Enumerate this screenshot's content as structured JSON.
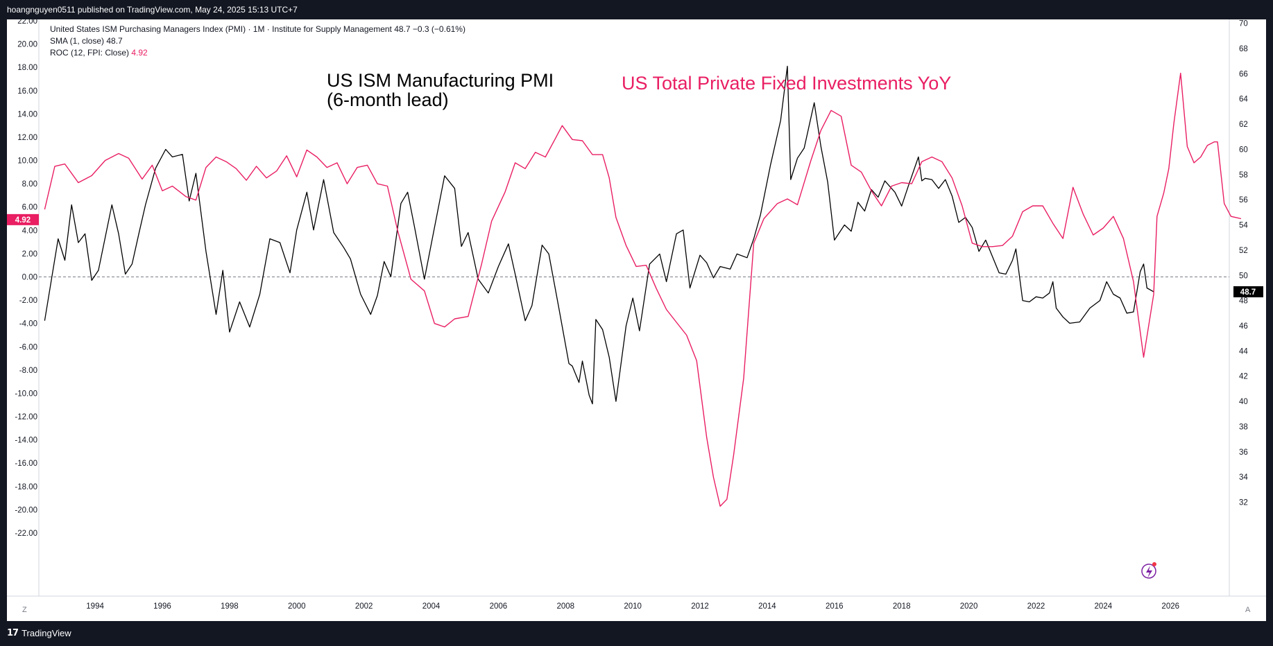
{
  "header": {
    "published": "hoangnguyen0511 published on TradingView.com, May 24, 2025 15:13 UTC+7"
  },
  "footer": {
    "brand": "TradingView",
    "brand_icon": "tradingview-logo-icon"
  },
  "legend": {
    "main": "United States ISM Purchasing Managers Index (PMI) · 1M · Institute for Supply Management  48.7  −0.3 (−0.61%)",
    "sma": "SMA (1, close)",
    "sma_value": "48.7",
    "roc": "ROC (12, FPI: Close)",
    "roc_value": "4.92"
  },
  "annotations": {
    "pmi_line1": "US ISM Manufacturing PMI",
    "pmi_line2": "(6-month lead)",
    "investment": "US Total Private Fixed Investments YoY"
  },
  "corners": {
    "left": "Z",
    "right": "A"
  },
  "colors": {
    "pmi": "#000000",
    "roc": "#e91e63",
    "background": "#ffffff",
    "frame": "#131722"
  },
  "chart_data": {
    "type": "line",
    "x_ticks": [
      "1994",
      "1996",
      "1998",
      "2000",
      "2002",
      "2004",
      "2006",
      "2008",
      "2010",
      "2012",
      "2014",
      "2016",
      "2018",
      "2020",
      "2022",
      "2024",
      "2026"
    ],
    "x_range": [
      1992.45,
      2027.75
    ],
    "left_axis": {
      "ticks": [
        "22.00",
        "20.00",
        "18.00",
        "16.00",
        "14.00",
        "12.00",
        "10.00",
        "8.00",
        "6.00",
        "4.00",
        "2.00",
        "0.00",
        "-2.00",
        "-4.00",
        "-6.00",
        "-8.00",
        "-10.00",
        "-12.00",
        "-14.00",
        "-16.00",
        "-18.00",
        "-20.00",
        "-22.00"
      ],
      "range": [
        -22,
        22
      ],
      "current_label": "4.92"
    },
    "right_axis": {
      "ticks": [
        "70",
        "68",
        "66",
        "64",
        "62",
        "60",
        "58",
        "56",
        "54",
        "52",
        "50",
        "48",
        "46",
        "44",
        "42",
        "40",
        "38",
        "36",
        "34",
        "32"
      ],
      "range": [
        31.7,
        70.2
      ],
      "current_label": "48.7"
    },
    "zero_line": 0,
    "series": [
      {
        "name": "United States ISM Purchasing Managers Index (PMI)",
        "axis": "right",
        "color": "#000000",
        "points": [
          [
            1992.5,
            46.4
          ],
          [
            1992.9,
            52.9
          ],
          [
            1993.1,
            51.2
          ],
          [
            1993.3,
            55.6
          ],
          [
            1993.5,
            52.6
          ],
          [
            1993.7,
            53.3
          ],
          [
            1993.9,
            49.6
          ],
          [
            1994.1,
            50.4
          ],
          [
            1994.3,
            53.0
          ],
          [
            1994.5,
            55.6
          ],
          [
            1994.7,
            53.3
          ],
          [
            1994.9,
            50.1
          ],
          [
            1995.1,
            50.9
          ],
          [
            1995.3,
            53.3
          ],
          [
            1995.5,
            55.6
          ],
          [
            1995.8,
            58.5
          ],
          [
            1996.1,
            60.0
          ],
          [
            1996.3,
            59.4
          ],
          [
            1996.6,
            59.6
          ],
          [
            1996.8,
            55.9
          ],
          [
            1997.0,
            58.1
          ],
          [
            1997.3,
            51.9
          ],
          [
            1997.6,
            46.9
          ],
          [
            1997.8,
            50.4
          ],
          [
            1998.0,
            45.5
          ],
          [
            1998.3,
            47.9
          ],
          [
            1998.6,
            45.9
          ],
          [
            1998.9,
            48.5
          ],
          [
            1999.2,
            52.9
          ],
          [
            1999.5,
            52.6
          ],
          [
            1999.8,
            50.2
          ],
          [
            2000.0,
            53.6
          ],
          [
            2000.3,
            56.6
          ],
          [
            2000.5,
            53.6
          ],
          [
            2000.8,
            57.6
          ],
          [
            2001.1,
            53.4
          ],
          [
            2001.4,
            52.2
          ],
          [
            2001.6,
            51.3
          ],
          [
            2001.9,
            48.5
          ],
          [
            2002.2,
            46.9
          ],
          [
            2002.4,
            48.4
          ],
          [
            2002.6,
            51.1
          ],
          [
            2002.8,
            49.9
          ],
          [
            2003.1,
            55.7
          ],
          [
            2003.3,
            56.6
          ],
          [
            2003.5,
            53.9
          ],
          [
            2003.8,
            49.7
          ],
          [
            2004.1,
            53.8
          ],
          [
            2004.4,
            57.9
          ],
          [
            2004.7,
            56.9
          ],
          [
            2004.9,
            52.3
          ],
          [
            2005.1,
            53.4
          ],
          [
            2005.4,
            49.7
          ],
          [
            2005.7,
            48.6
          ],
          [
            2006.0,
            50.7
          ],
          [
            2006.3,
            52.5
          ],
          [
            2006.5,
            50.1
          ],
          [
            2006.8,
            46.4
          ],
          [
            2007.0,
            47.6
          ],
          [
            2007.3,
            52.4
          ],
          [
            2007.5,
            51.7
          ],
          [
            2007.8,
            47.4
          ],
          [
            2008.1,
            43.0
          ],
          [
            2008.2,
            42.8
          ],
          [
            2008.4,
            41.5
          ],
          [
            2008.5,
            43.2
          ],
          [
            2008.7,
            40.5
          ],
          [
            2008.8,
            39.8
          ],
          [
            2008.9,
            46.5
          ],
          [
            2009.1,
            45.7
          ],
          [
            2009.3,
            43.5
          ],
          [
            2009.5,
            40.0
          ],
          [
            2009.8,
            46.0
          ],
          [
            2010.0,
            48.2
          ],
          [
            2010.2,
            45.6
          ],
          [
            2010.5,
            50.9
          ],
          [
            2010.8,
            51.7
          ],
          [
            2011.0,
            49.5
          ],
          [
            2011.3,
            53.3
          ],
          [
            2011.5,
            53.6
          ],
          [
            2011.7,
            49.0
          ],
          [
            2012.0,
            51.6
          ],
          [
            2012.2,
            51.0
          ],
          [
            2012.4,
            49.8
          ],
          [
            2012.6,
            50.7
          ],
          [
            2012.9,
            50.5
          ],
          [
            2013.1,
            51.7
          ],
          [
            2013.4,
            51.4
          ],
          [
            2013.6,
            52.9
          ],
          [
            2013.8,
            54.8
          ],
          [
            2014.1,
            58.8
          ],
          [
            2014.4,
            62.3
          ],
          [
            2014.6,
            66.6
          ],
          [
            2014.7,
            57.6
          ],
          [
            2014.9,
            59.3
          ],
          [
            2015.1,
            60.1
          ],
          [
            2015.4,
            63.7
          ],
          [
            2015.6,
            60.2
          ],
          [
            2015.8,
            57.4
          ],
          [
            2016.0,
            52.8
          ],
          [
            2016.3,
            54.0
          ],
          [
            2016.5,
            53.5
          ],
          [
            2016.7,
            55.8
          ],
          [
            2016.9,
            55.1
          ],
          [
            2017.1,
            56.8
          ],
          [
            2017.3,
            56.2
          ],
          [
            2017.5,
            57.5
          ],
          [
            2017.8,
            56.6
          ],
          [
            2018.0,
            55.5
          ],
          [
            2018.2,
            57.1
          ],
          [
            2018.5,
            59.4
          ],
          [
            2018.6,
            57.5
          ],
          [
            2018.7,
            57.7
          ],
          [
            2018.9,
            57.6
          ],
          [
            2019.1,
            56.9
          ],
          [
            2019.3,
            57.6
          ],
          [
            2019.5,
            56.3
          ],
          [
            2019.7,
            54.2
          ],
          [
            2019.9,
            54.6
          ],
          [
            2020.1,
            53.8
          ],
          [
            2020.3,
            51.9
          ],
          [
            2020.5,
            52.8
          ],
          [
            2020.7,
            51.5
          ],
          [
            2020.9,
            50.2
          ],
          [
            2021.1,
            50.1
          ],
          [
            2021.3,
            51.2
          ],
          [
            2021.4,
            52.1
          ],
          [
            2021.6,
            48.0
          ],
          [
            2021.8,
            47.9
          ],
          [
            2022.0,
            48.3
          ],
          [
            2022.2,
            48.2
          ],
          [
            2022.4,
            48.6
          ],
          [
            2022.5,
            49.5
          ],
          [
            2022.6,
            47.4
          ],
          [
            2022.8,
            46.7
          ],
          [
            2023.0,
            46.2
          ],
          [
            2023.3,
            46.3
          ],
          [
            2023.6,
            47.4
          ],
          [
            2023.9,
            48.0
          ],
          [
            2024.1,
            49.5
          ],
          [
            2024.3,
            48.5
          ],
          [
            2024.5,
            48.2
          ],
          [
            2024.7,
            47.0
          ],
          [
            2024.9,
            47.1
          ],
          [
            2025.1,
            50.3
          ],
          [
            2025.2,
            50.9
          ],
          [
            2025.3,
            49.0
          ],
          [
            2025.5,
            48.7
          ]
        ]
      },
      {
        "name": "ROC (12, FPI: Close)",
        "axis": "left",
        "color": "#e91e63",
        "points": [
          [
            1992.5,
            5.8
          ],
          [
            1992.8,
            9.5
          ],
          [
            1993.1,
            9.7
          ],
          [
            1993.5,
            8.1
          ],
          [
            1993.9,
            8.7
          ],
          [
            1994.3,
            10.0
          ],
          [
            1994.7,
            10.6
          ],
          [
            1995.0,
            10.2
          ],
          [
            1995.4,
            8.4
          ],
          [
            1995.7,
            9.6
          ],
          [
            1996.0,
            7.4
          ],
          [
            1996.3,
            7.8
          ],
          [
            1996.7,
            6.9
          ],
          [
            1997.0,
            6.6
          ],
          [
            1997.3,
            9.4
          ],
          [
            1997.6,
            10.3
          ],
          [
            1997.9,
            9.9
          ],
          [
            1998.2,
            9.3
          ],
          [
            1998.5,
            8.3
          ],
          [
            1998.8,
            9.5
          ],
          [
            1999.1,
            8.5
          ],
          [
            1999.4,
            9.1
          ],
          [
            1999.7,
            10.4
          ],
          [
            2000.0,
            8.6
          ],
          [
            2000.3,
            10.9
          ],
          [
            2000.6,
            10.3
          ],
          [
            2000.9,
            9.4
          ],
          [
            2001.2,
            9.8
          ],
          [
            2001.5,
            8.0
          ],
          [
            2001.8,
            9.4
          ],
          [
            2002.1,
            9.6
          ],
          [
            2002.4,
            8.0
          ],
          [
            2002.7,
            7.8
          ],
          [
            2003.0,
            4.0
          ],
          [
            2003.4,
            -0.2
          ],
          [
            2003.8,
            -1.2
          ],
          [
            2004.1,
            -4.0
          ],
          [
            2004.4,
            -4.3
          ],
          [
            2004.7,
            -3.6
          ],
          [
            2005.1,
            -3.4
          ],
          [
            2005.5,
            1.1
          ],
          [
            2005.8,
            4.8
          ],
          [
            2006.2,
            7.3
          ],
          [
            2006.5,
            9.8
          ],
          [
            2006.8,
            9.3
          ],
          [
            2007.1,
            10.7
          ],
          [
            2007.4,
            10.3
          ],
          [
            2007.7,
            11.9
          ],
          [
            2007.9,
            13.0
          ],
          [
            2008.2,
            11.8
          ],
          [
            2008.5,
            11.7
          ],
          [
            2008.8,
            10.5
          ],
          [
            2009.1,
            10.5
          ],
          [
            2009.3,
            8.5
          ],
          [
            2009.5,
            5.1
          ],
          [
            2009.8,
            2.7
          ],
          [
            2010.1,
            0.9
          ],
          [
            2010.4,
            1.0
          ],
          [
            2010.7,
            -1.0
          ],
          [
            2011.0,
            -2.8
          ],
          [
            2011.3,
            -3.9
          ],
          [
            2011.6,
            -5.0
          ],
          [
            2011.9,
            -7.2
          ],
          [
            2012.2,
            -13.8
          ],
          [
            2012.4,
            -17.2
          ],
          [
            2012.6,
            -19.7
          ],
          [
            2012.8,
            -19.1
          ],
          [
            2013.0,
            -15.3
          ],
          [
            2013.3,
            -8.7
          ],
          [
            2013.6,
            2.9
          ],
          [
            2013.9,
            5.0
          ],
          [
            2014.3,
            6.3
          ],
          [
            2014.6,
            6.7
          ],
          [
            2014.9,
            6.2
          ],
          [
            2015.3,
            10.0
          ],
          [
            2015.6,
            12.6
          ],
          [
            2015.9,
            14.3
          ],
          [
            2016.2,
            13.8
          ],
          [
            2016.5,
            9.6
          ],
          [
            2016.8,
            9.0
          ],
          [
            2017.1,
            7.4
          ],
          [
            2017.4,
            6.1
          ],
          [
            2017.7,
            7.8
          ],
          [
            2018.0,
            8.1
          ],
          [
            2018.3,
            8.0
          ],
          [
            2018.6,
            9.9
          ],
          [
            2018.9,
            10.3
          ],
          [
            2019.2,
            9.9
          ],
          [
            2019.5,
            8.5
          ],
          [
            2019.8,
            6.1
          ],
          [
            2020.1,
            2.9
          ],
          [
            2020.4,
            2.6
          ],
          [
            2020.7,
            2.6
          ],
          [
            2021.0,
            2.7
          ],
          [
            2021.3,
            3.5
          ],
          [
            2021.6,
            5.6
          ],
          [
            2021.9,
            6.1
          ],
          [
            2022.2,
            6.1
          ],
          [
            2022.5,
            4.6
          ],
          [
            2022.8,
            3.3
          ],
          [
            2023.1,
            7.7
          ],
          [
            2023.4,
            5.4
          ],
          [
            2023.7,
            3.6
          ],
          [
            2024.0,
            4.2
          ],
          [
            2024.3,
            5.2
          ],
          [
            2024.6,
            3.3
          ],
          [
            2024.9,
            -0.4
          ],
          [
            2025.2,
            -6.9
          ],
          [
            2025.5,
            -1.5
          ],
          [
            2025.6,
            5.2
          ],
          [
            2025.8,
            7.2
          ],
          [
            2025.95,
            9.3
          ],
          [
            2026.1,
            13.2
          ],
          [
            2026.3,
            17.5
          ],
          [
            2026.5,
            11.2
          ],
          [
            2026.7,
            9.8
          ],
          [
            2026.9,
            10.3
          ],
          [
            2027.1,
            11.3
          ],
          [
            2027.3,
            11.6
          ],
          [
            2027.4,
            11.6
          ],
          [
            2027.6,
            6.3
          ],
          [
            2027.8,
            5.2
          ],
          [
            2028.1,
            5.0
          ]
        ]
      }
    ]
  }
}
